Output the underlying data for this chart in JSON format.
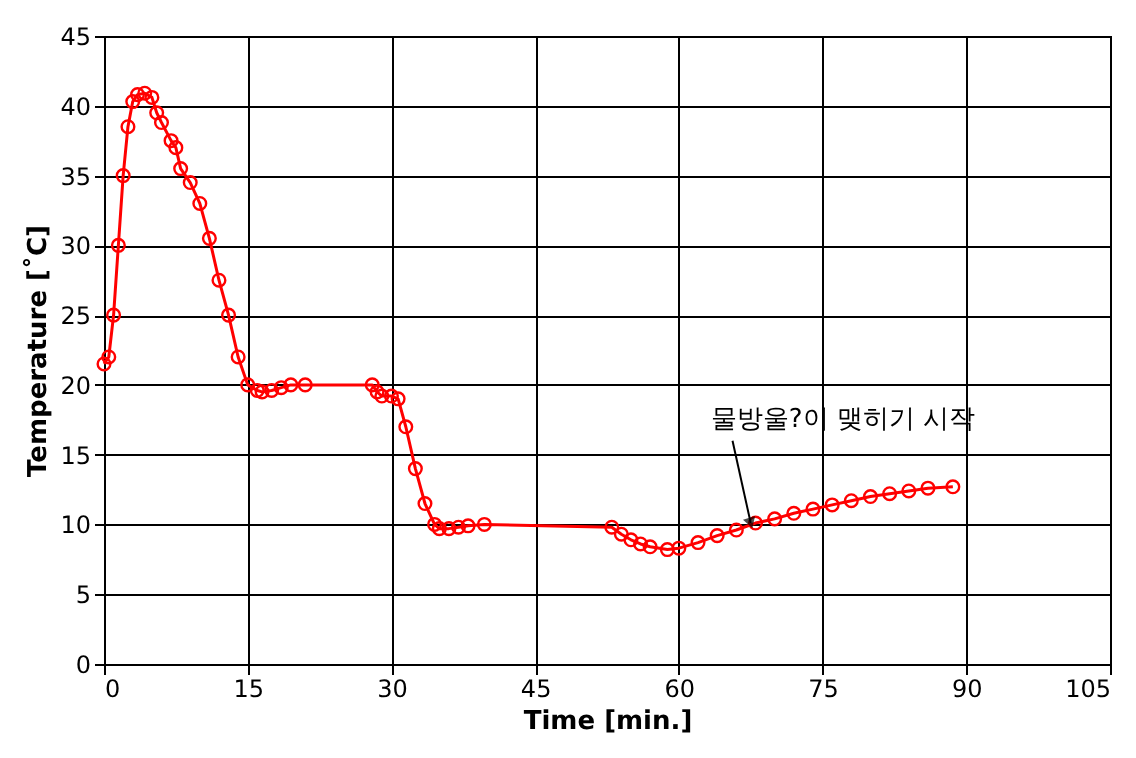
{
  "chart_data": {
    "type": "line",
    "xlabel": "Time [min.]",
    "ylabel": "Temperature [˚C]",
    "xlim": [
      0,
      105
    ],
    "xticks": [
      0,
      15,
      30,
      45,
      60,
      75,
      90,
      105
    ],
    "ylim": [
      0,
      45
    ],
    "yticks": [
      0,
      5,
      10,
      15,
      20,
      25,
      30,
      35,
      40,
      45
    ],
    "grid": true,
    "marker": "circle",
    "line_style": "solid",
    "annotations": [
      {
        "text": "물방울?이 맺히기 시작",
        "x": 67.5,
        "y": 10.1
      }
    ],
    "series": [
      {
        "color": "#ff0000",
        "x": [
          0,
          0.5,
          1,
          1.5,
          2,
          2.5,
          3,
          3.5,
          4.25,
          5,
          5.5,
          6,
          7,
          7.5,
          8,
          9,
          10,
          11,
          12,
          13,
          14,
          15,
          16,
          16.5,
          17.5,
          18.5,
          19.5,
          21,
          28,
          28.5,
          29,
          30,
          30.7,
          31.5,
          32.5,
          33.5,
          34.5,
          35,
          36,
          37,
          38,
          39.7,
          53,
          54,
          55,
          56,
          57,
          58.8,
          60,
          62,
          64,
          66,
          68,
          70,
          72,
          74,
          76,
          78,
          80,
          82,
          84,
          86,
          88.6
        ],
        "values": [
          21.5,
          22,
          25,
          30,
          35,
          38.5,
          40.3,
          40.8,
          40.9,
          40.6,
          39.5,
          38.8,
          37.5,
          37,
          35.5,
          34.5,
          33,
          30.5,
          27.5,
          25,
          22,
          20,
          19.6,
          19.5,
          19.6,
          19.8,
          20,
          20,
          20,
          19.5,
          19.2,
          19.2,
          19,
          17,
          14,
          11.5,
          10,
          9.7,
          9.7,
          9.8,
          9.9,
          10,
          9.8,
          9.3,
          8.9,
          8.6,
          8.4,
          8.2,
          8.3,
          8.7,
          9.2,
          9.6,
          10.1,
          10.4,
          10.8,
          11.1,
          11.4,
          11.7,
          12,
          12.2,
          12.4,
          12.6,
          12.7
        ]
      }
    ]
  }
}
